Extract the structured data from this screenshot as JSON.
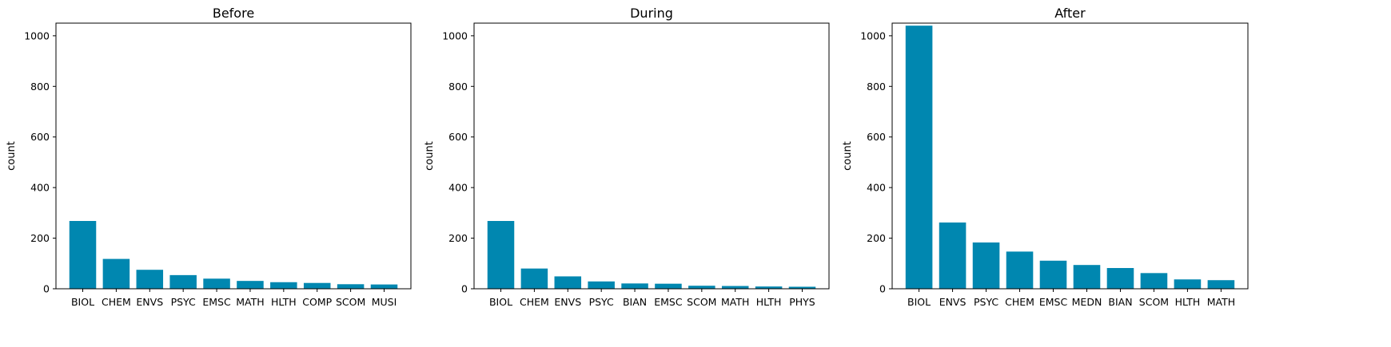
{
  "chart_data": [
    {
      "type": "bar",
      "title": "Before",
      "xlabel": "",
      "ylabel": "count",
      "ylim": [
        0,
        1050
      ],
      "yticks": [
        0,
        200,
        400,
        600,
        800,
        1000
      ],
      "categories": [
        "BIOL",
        "CHEM",
        "ENVS",
        "PSYC",
        "EMSC",
        "MATH",
        "HLTH",
        "COMP",
        "SCOM",
        "MUSI"
      ],
      "values": [
        268,
        118,
        75,
        54,
        40,
        31,
        26,
        23,
        18,
        17
      ],
      "color": "#0087b0",
      "grid": false
    },
    {
      "type": "bar",
      "title": "During",
      "xlabel": "",
      "ylabel": "count",
      "ylim": [
        0,
        1050
      ],
      "yticks": [
        0,
        200,
        400,
        600,
        800,
        1000
      ],
      "categories": [
        "BIOL",
        "CHEM",
        "ENVS",
        "PSYC",
        "BIAN",
        "EMSC",
        "SCOM",
        "MATH",
        "HLTH",
        "PHYS"
      ],
      "values": [
        268,
        80,
        49,
        29,
        21,
        20,
        12,
        11,
        9,
        8
      ],
      "color": "#0087b0",
      "grid": false
    },
    {
      "type": "bar",
      "title": "After",
      "xlabel": "",
      "ylabel": "count",
      "ylim": [
        0,
        1050
      ],
      "yticks": [
        0,
        200,
        400,
        600,
        800,
        1000
      ],
      "categories": [
        "BIOL",
        "ENVS",
        "PSYC",
        "CHEM",
        "EMSC",
        "MEDN",
        "BIAN",
        "SCOM",
        "HLTH",
        "MATH"
      ],
      "values": [
        1040,
        262,
        183,
        147,
        111,
        94,
        82,
        62,
        37,
        34
      ],
      "color": "#0087b0",
      "grid": false
    }
  ]
}
